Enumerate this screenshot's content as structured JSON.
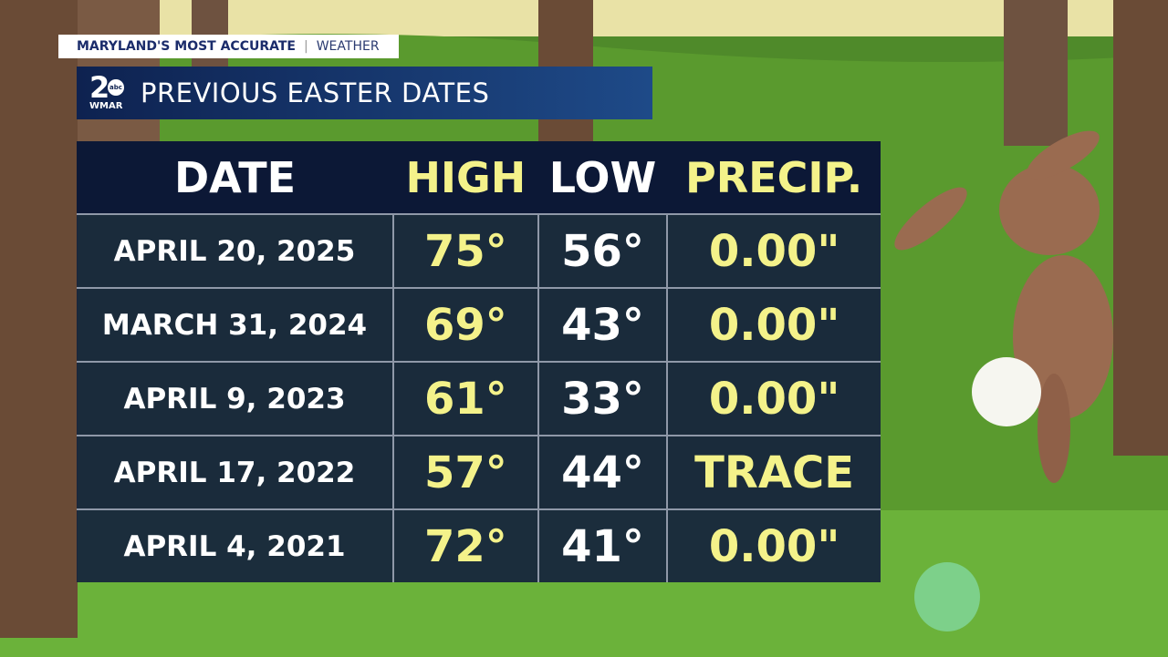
{
  "header": {
    "tag": "MARYLAND'S MOST ACCURATE",
    "tag_section": "WEATHER",
    "logo_number": "2",
    "logo_network": "abc",
    "logo_station": "WMAR",
    "title": "PREVIOUS EASTER DATES"
  },
  "table": {
    "columns": [
      "DATE",
      "HIGH",
      "LOW",
      "PRECIP."
    ],
    "rows": [
      [
        "APRIL 20, 2025",
        "75°",
        "56°",
        "0.00\""
      ],
      [
        "MARCH 31, 2024",
        "69°",
        "43°",
        "0.00\""
      ],
      [
        "APRIL 9, 2023",
        "61°",
        "33°",
        "0.00\""
      ],
      [
        "APRIL 17, 2022",
        "57°",
        "44°",
        "TRACE"
      ],
      [
        "APRIL 4, 2021",
        "72°",
        "41°",
        "0.00\""
      ]
    ]
  }
}
